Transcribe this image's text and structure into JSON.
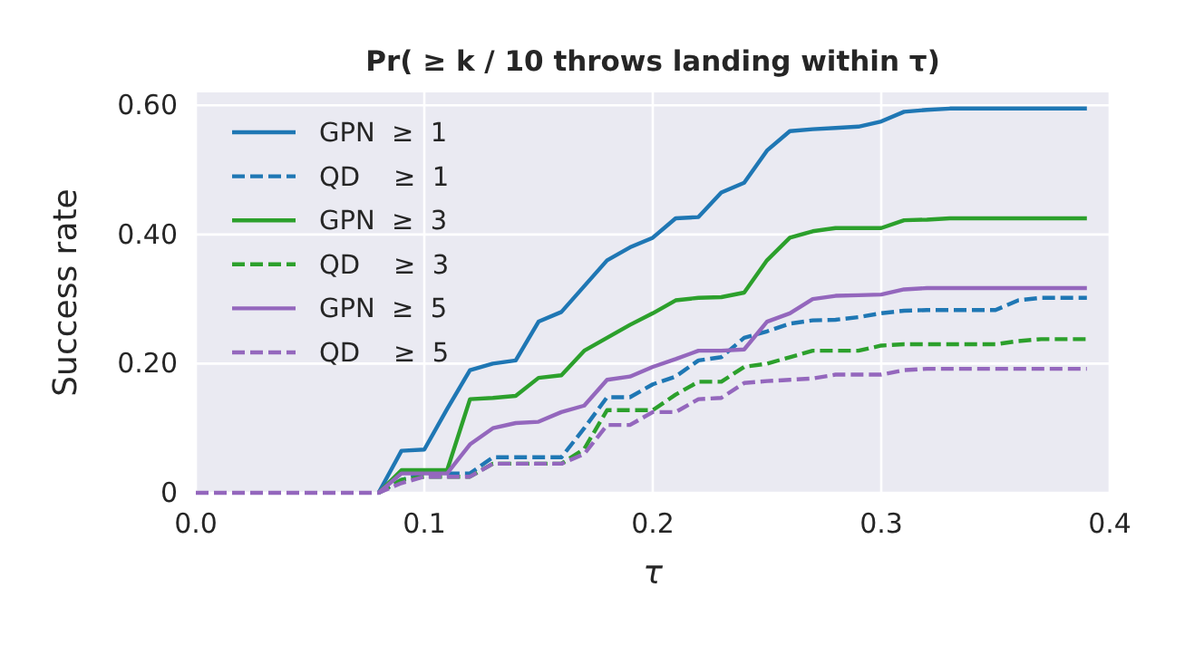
{
  "chart_data": {
    "type": "line",
    "title": "Pr( ≥ k / 10 throws landing within τ)",
    "xlabel": "τ",
    "ylabel": "Success rate",
    "x": [
      0,
      0.01,
      0.02,
      0.03,
      0.04,
      0.05,
      0.06,
      0.07,
      0.08,
      0.09,
      0.1,
      0.11,
      0.12,
      0.13,
      0.14,
      0.15,
      0.16,
      0.17,
      0.18,
      0.19,
      0.2,
      0.21,
      0.22,
      0.23,
      0.24,
      0.25,
      0.26,
      0.27,
      0.28,
      0.29,
      0.3,
      0.31,
      0.32,
      0.33,
      0.34,
      0.35,
      0.36,
      0.37,
      0.38,
      0.39
    ],
    "series": [
      {
        "name": "GPN  ≥  1",
        "color": "#1f77b4",
        "line_style": "solid",
        "values": [
          null,
          null,
          null,
          null,
          null,
          null,
          null,
          null,
          0,
          0.065,
          0.067,
          0.13,
          0.19,
          0.2,
          0.205,
          0.265,
          0.28,
          0.32,
          0.36,
          0.38,
          0.395,
          0.425,
          0.427,
          0.465,
          0.48,
          0.53,
          0.56,
          0.563,
          0.565,
          0.567,
          0.575,
          0.59,
          0.593,
          0.595,
          0.595,
          0.595,
          0.595,
          0.595,
          0.595,
          0.595
        ]
      },
      {
        "name": "QD    ≥  1",
        "color": "#1f77b4",
        "line_style": "dashed",
        "values": [
          null,
          null,
          null,
          null,
          null,
          null,
          null,
          null,
          0,
          0.02,
          0.03,
          0.03,
          0.03,
          0.055,
          0.055,
          0.055,
          0.055,
          0.1,
          0.148,
          0.148,
          0.168,
          0.18,
          0.205,
          0.21,
          0.24,
          0.25,
          0.262,
          0.267,
          0.268,
          0.272,
          0.278,
          0.282,
          0.283,
          0.283,
          0.283,
          0.283,
          0.298,
          0.302,
          0.302,
          0.302
        ]
      },
      {
        "name": "GPN  ≥  3",
        "color": "#2ca02c",
        "line_style": "solid",
        "values": [
          null,
          null,
          null,
          null,
          null,
          null,
          null,
          null,
          0,
          0.035,
          0.035,
          0.035,
          0.145,
          0.147,
          0.15,
          0.178,
          0.182,
          0.22,
          0.24,
          0.26,
          0.278,
          0.298,
          0.302,
          0.303,
          0.31,
          0.36,
          0.395,
          0.405,
          0.41,
          0.41,
          0.41,
          0.422,
          0.423,
          0.425,
          0.425,
          0.425,
          0.425,
          0.425,
          0.425,
          0.425
        ]
      },
      {
        "name": "QD    ≥  3",
        "color": "#2ca02c",
        "line_style": "dashed",
        "values": [
          null,
          null,
          null,
          null,
          null,
          null,
          null,
          null,
          0,
          0.02,
          0.025,
          0.025,
          0.025,
          0.045,
          0.045,
          0.045,
          0.045,
          0.068,
          0.128,
          0.128,
          0.128,
          0.152,
          0.172,
          0.172,
          0.195,
          0.2,
          0.21,
          0.22,
          0.22,
          0.22,
          0.228,
          0.23,
          0.23,
          0.23,
          0.23,
          0.23,
          0.235,
          0.238,
          0.238,
          0.238
        ]
      },
      {
        "name": "GPN  ≥  5",
        "color": "#9467bd",
        "line_style": "solid",
        "values": [
          null,
          null,
          null,
          null,
          null,
          null,
          null,
          null,
          0,
          0.03,
          0.03,
          0.03,
          0.075,
          0.1,
          0.108,
          0.11,
          0.125,
          0.135,
          0.175,
          0.18,
          0.195,
          0.207,
          0.22,
          0.22,
          0.222,
          0.265,
          0.278,
          0.3,
          0.305,
          0.306,
          0.307,
          0.315,
          0.317,
          0.317,
          0.317,
          0.317,
          0.317,
          0.317,
          0.317,
          0.317
        ]
      },
      {
        "name": "QD    ≥  5",
        "color": "#9467bd",
        "line_style": "dashed",
        "values": [
          0,
          0,
          0,
          0,
          0,
          0,
          0,
          0,
          0,
          0.015,
          0.025,
          0.025,
          0.025,
          0.045,
          0.045,
          0.045,
          0.045,
          0.06,
          0.105,
          0.105,
          0.125,
          0.125,
          0.145,
          0.147,
          0.17,
          0.173,
          0.175,
          0.177,
          0.183,
          0.183,
          0.183,
          0.19,
          0.192,
          0.192,
          0.192,
          0.192,
          0.192,
          0.192,
          0.192,
          0.192
        ]
      }
    ],
    "xlim": [
      0,
      0.4
    ],
    "xticks": [
      {
        "value": 0,
        "label": "0.0"
      },
      0.1,
      0.2,
      0.3,
      {
        "value": 0.4,
        "label": "0.4"
      }
    ],
    "ylim": [
      0,
      0.62
    ],
    "yticks": [
      0,
      {
        "value": 0.2,
        "label": "0.20"
      },
      {
        "value": 0.4,
        "label": "0.40"
      },
      {
        "value": 0.6,
        "label": "0.60"
      }
    ],
    "grid": true,
    "legend": "top left"
  }
}
